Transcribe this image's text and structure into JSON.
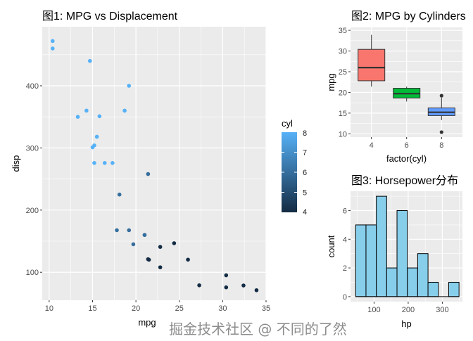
{
  "chart_data": [
    {
      "type": "scatter",
      "title": "图1: MPG vs Displacement",
      "xlabel": "mpg",
      "ylabel": "disp",
      "xlim": [
        9.2,
        35
      ],
      "ylim": [
        55,
        495
      ],
      "xticks": [
        10,
        15,
        20,
        25,
        30,
        35
      ],
      "yticks": [
        100,
        200,
        300,
        400
      ],
      "legend": {
        "title": "cyl",
        "labels": [
          "8",
          "7",
          "6",
          "5",
          "4"
        ],
        "low": "#132B43",
        "high": "#56B1F7",
        "placement": "right"
      },
      "points": [
        [
          21,
          160,
          6
        ],
        [
          21,
          160,
          6
        ],
        [
          22.8,
          108,
          4
        ],
        [
          21.4,
          258,
          6
        ],
        [
          18.7,
          360,
          8
        ],
        [
          18.1,
          225,
          6
        ],
        [
          14.3,
          360,
          8
        ],
        [
          24.4,
          146.7,
          4
        ],
        [
          22.8,
          140.8,
          4
        ],
        [
          19.2,
          167.6,
          6
        ],
        [
          17.8,
          167.6,
          6
        ],
        [
          16.4,
          275.8,
          8
        ],
        [
          17.3,
          275.8,
          8
        ],
        [
          15.2,
          275.8,
          8
        ],
        [
          10.4,
          472,
          8
        ],
        [
          10.4,
          460,
          8
        ],
        [
          14.7,
          440,
          8
        ],
        [
          32.4,
          78.7,
          4
        ],
        [
          30.4,
          75.7,
          4
        ],
        [
          33.9,
          71.1,
          4
        ],
        [
          21.5,
          120.1,
          4
        ],
        [
          15.5,
          318,
          8
        ],
        [
          15.2,
          304,
          8
        ],
        [
          13.3,
          350,
          8
        ],
        [
          19.2,
          400,
          8
        ],
        [
          27.3,
          79,
          4
        ],
        [
          26,
          120.3,
          4
        ],
        [
          30.4,
          95.1,
          4
        ],
        [
          15.8,
          351,
          8
        ],
        [
          19.7,
          145,
          6
        ],
        [
          15,
          301,
          8
        ],
        [
          21.4,
          121,
          4
        ]
      ]
    },
    {
      "type": "box",
      "title": "图2: MPG by Cylinders",
      "xlabel": "factor(cyl)",
      "ylabel": "mpg",
      "ylim": [
        9.2,
        35.7
      ],
      "yticks": [
        10,
        15,
        20,
        25,
        30,
        35
      ],
      "categories": [
        "4",
        "6",
        "8"
      ],
      "boxes": [
        {
          "min": 21.4,
          "q1": 22.8,
          "median": 26,
          "q3": 30.4,
          "max": 33.9,
          "outliers": [],
          "fill": "#F8766D"
        },
        {
          "min": 17.8,
          "q1": 18.65,
          "median": 19.7,
          "q3": 21,
          "max": 21.4,
          "outliers": [],
          "fill": "#00BA38"
        },
        {
          "min": 13.3,
          "q1": 14.4,
          "median": 15.2,
          "q3": 16.25,
          "max": 18.7,
          "outliers": [
            10.4,
            19.2
          ],
          "fill": "#619CFF"
        }
      ]
    },
    {
      "type": "bar",
      "title": "图3: Horsepower分布",
      "xlabel": "hp",
      "ylabel": "count",
      "xlim": [
        31,
        359
      ],
      "ylim": [
        -0.35,
        7.35
      ],
      "xticks": [
        100,
        200,
        300
      ],
      "yticks": [
        0,
        2,
        4,
        6
      ],
      "bin_start": 46,
      "bin_width": 30.3,
      "counts": [
        5,
        5,
        7,
        2,
        6,
        2,
        3,
        1,
        0,
        1
      ],
      "fill": "#87CEEB"
    }
  ],
  "watermark": "掘金技术社区 @ 不同的了然"
}
